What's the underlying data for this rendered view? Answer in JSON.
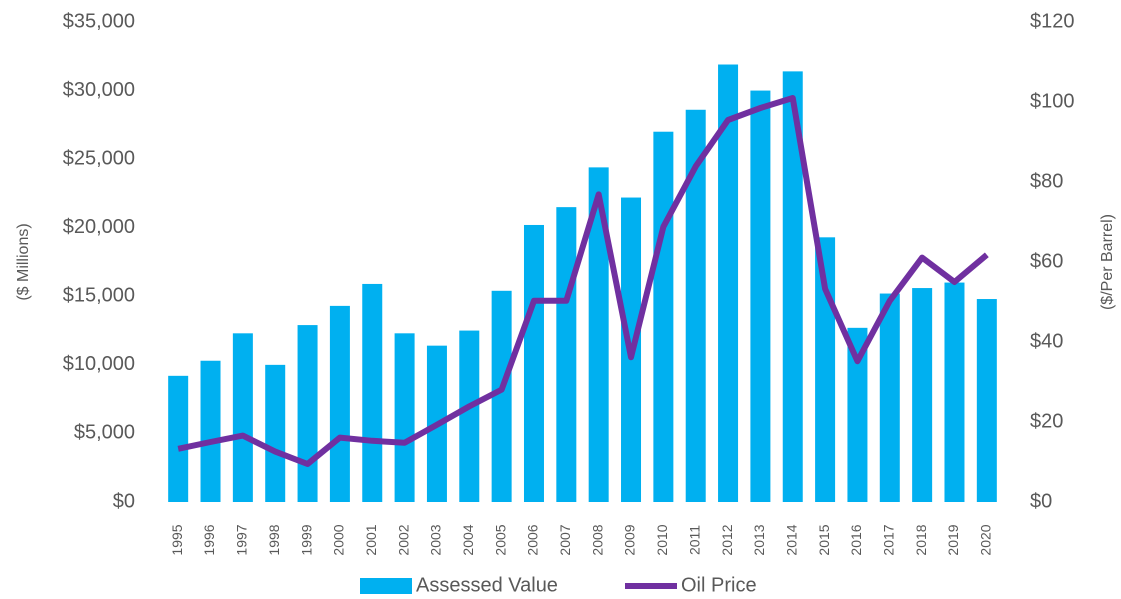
{
  "chart_data": {
    "type": "bar",
    "categories": [
      "1995",
      "1996",
      "1997",
      "1998",
      "1999",
      "2000",
      "2001",
      "2002",
      "2003",
      "2004",
      "2005",
      "2006",
      "2007",
      "2008",
      "2009",
      "2010",
      "2011",
      "2012",
      "2013",
      "2014",
      "2015",
      "2016",
      "2017",
      "2018",
      "2019",
      "2020"
    ],
    "series": [
      {
        "name": "Assessed Value",
        "type": "bar",
        "color": "#00b0f0",
        "axis": "y",
        "values": [
          9200,
          10300,
          12300,
          10000,
          12900,
          14300,
          15900,
          12300,
          11400,
          12500,
          15400,
          20200,
          21500,
          24400,
          22200,
          27000,
          28600,
          31900,
          30000,
          31400,
          19300,
          12700,
          15200,
          15600,
          16000,
          14800
        ]
      },
      {
        "name": "Oil Price",
        "type": "line",
        "color": "#7030a0",
        "axis": "y2",
        "values": [
          13.3,
          15,
          16.6,
          12.6,
          9.5,
          16.1,
          15.3,
          14.8,
          19.3,
          23.9,
          28.1,
          50.3,
          50.3,
          76.9,
          36.2,
          68.8,
          83.9,
          95.5,
          98.5,
          101,
          53.3,
          35.2,
          50.3,
          61.1,
          55,
          61.8
        ]
      }
    ],
    "y_label": "($ Millions)",
    "y2_label": "($/Per Barrel)",
    "ylim": [
      0,
      35000
    ],
    "yticks": [
      {
        "value": 0,
        "label": "$0"
      },
      {
        "value": 5000,
        "label": "$5,000"
      },
      {
        "value": 10000,
        "label": "$10,000"
      },
      {
        "value": 15000,
        "label": "$15,000"
      },
      {
        "value": 20000,
        "label": "$20,000"
      },
      {
        "value": 25000,
        "label": "$25,000"
      },
      {
        "value": 30000,
        "label": "$30,000"
      },
      {
        "value": 35000,
        "label": "$35,000"
      }
    ],
    "y2lim": [
      0,
      120
    ],
    "y2ticks": [
      {
        "value": 0,
        "label": "$0"
      },
      {
        "value": 20,
        "label": "$20"
      },
      {
        "value": 40,
        "label": "$40"
      },
      {
        "value": 60,
        "label": "$60"
      },
      {
        "value": 80,
        "label": "$80"
      },
      {
        "value": 100,
        "label": "$100"
      },
      {
        "value": 120,
        "label": "$120"
      }
    ],
    "legend": "bottom",
    "grid": false
  }
}
